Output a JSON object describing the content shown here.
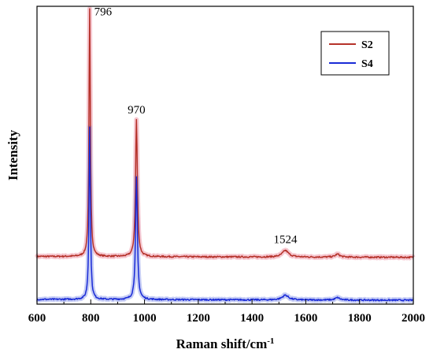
{
  "chart_data": {
    "type": "line",
    "title": "",
    "xlabel": "Raman shift/cm",
    "xlabel_superscript": "-1",
    "ylabel": "Intensity",
    "xlim": [
      600,
      2000
    ],
    "ylim": [
      0,
      100
    ],
    "x_ticks": [
      600,
      800,
      1000,
      1200,
      1400,
      1600,
      1800,
      2000
    ],
    "y_tick_labels": false,
    "grid": false,
    "legend_position": "top-right",
    "series": [
      {
        "name": "S2",
        "color": "#b5322a",
        "halo_color": "#f4b9c4",
        "baseline": 16,
        "peaks": [
          {
            "center": 796,
            "height": 83,
            "width": 3
          },
          {
            "center": 970,
            "height": 46,
            "width": 4
          },
          {
            "center": 1524,
            "height": 2.2,
            "width": 14
          },
          {
            "center": 1718,
            "height": 1.0,
            "width": 10
          }
        ]
      },
      {
        "name": "S4",
        "color": "#1a2bd6",
        "halo_color": "#b6bff2",
        "baseline": 1.6,
        "peaks": [
          {
            "center": 796,
            "height": 58,
            "width": 3
          },
          {
            "center": 970,
            "height": 41,
            "width": 4
          },
          {
            "center": 1524,
            "height": 1.6,
            "width": 14
          },
          {
            "center": 1718,
            "height": 0.8,
            "width": 10
          }
        ]
      }
    ],
    "annotations": [
      {
        "text": "796",
        "x": 796,
        "y": 97
      },
      {
        "text": "970",
        "x": 970,
        "y": 64
      },
      {
        "text": "1524",
        "x": 1524,
        "y": 20.5
      }
    ]
  }
}
